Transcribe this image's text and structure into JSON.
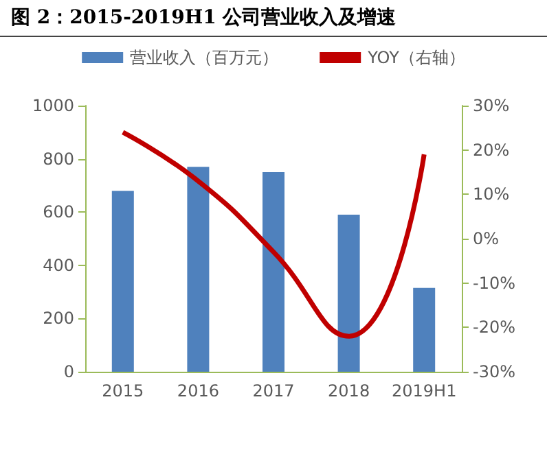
{
  "chart_data": {
    "type": "bar",
    "title": "图 2：2015-2019H1 公司营业收入及增速",
    "categories": [
      "2015",
      "2016",
      "2017",
      "2018",
      "2019H1"
    ],
    "series": [
      {
        "name": "营业收入（百万元）",
        "color": "#4f81bd",
        "values": [
          680,
          770,
          750,
          590,
          315
        ]
      },
      {
        "name": "YOY（右轴）",
        "type": "line",
        "axis": "y2",
        "color": "#c00000",
        "values": [
          24,
          13,
          -3,
          -22,
          19
        ],
        "marker": "none"
      }
    ],
    "ylim": [
      0,
      1000
    ],
    "yticks": [
      0,
      200,
      400,
      600,
      800,
      1000
    ],
    "y2lim": [
      -30,
      30
    ],
    "y2ticks": [
      {
        "value": -30,
        "label": "-30%"
      },
      {
        "value": -20,
        "label": "-20%"
      },
      {
        "value": -10,
        "label": "-10%"
      },
      {
        "value": 0,
        "label": "0%"
      },
      {
        "value": 10,
        "label": "10%"
      },
      {
        "value": 20,
        "label": "20%"
      },
      {
        "value": 30,
        "label": "30%"
      }
    ],
    "grid": false,
    "legend": "top"
  }
}
